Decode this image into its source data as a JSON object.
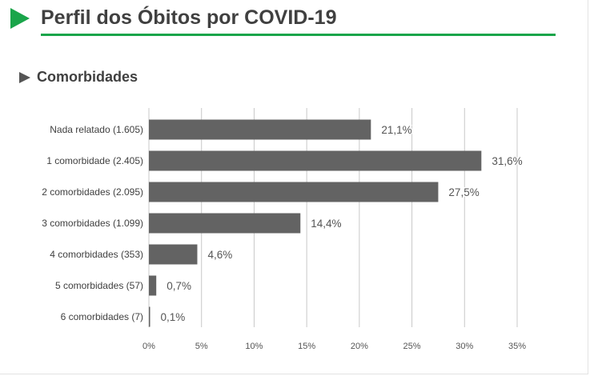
{
  "header": {
    "title": "Perfil dos Óbitos por COVID-19"
  },
  "section": {
    "title": "Comorbidades"
  },
  "colors": {
    "accent": "#1aa54a",
    "bar": "#636363",
    "grid": "#c8c8c8",
    "text": "#404040"
  },
  "chart_data": {
    "type": "bar",
    "orientation": "horizontal",
    "categories": [
      "Nada relatado (1.605)",
      "1 comorbidade (2.405)",
      "2 comorbidades (2.095)",
      "3 comorbidades (1.099)",
      "4 comorbidades (353)",
      "5 comorbidades (57)",
      "6 comorbidades (7)"
    ],
    "values": [
      21.1,
      31.6,
      27.5,
      14.4,
      4.6,
      0.7,
      0.1
    ],
    "data_labels": [
      "21,1%",
      "31,6%",
      "27,5%",
      "14,4%",
      "4,6%",
      "0,7%",
      "0,1%"
    ],
    "xticks": [
      0,
      5,
      10,
      15,
      20,
      25,
      30,
      35
    ],
    "xtick_labels": [
      "0%",
      "5%",
      "10%",
      "15%",
      "20%",
      "25%",
      "30%",
      "35%"
    ],
    "xlim": [
      0,
      35
    ],
    "grid": true,
    "legend": "none"
  }
}
